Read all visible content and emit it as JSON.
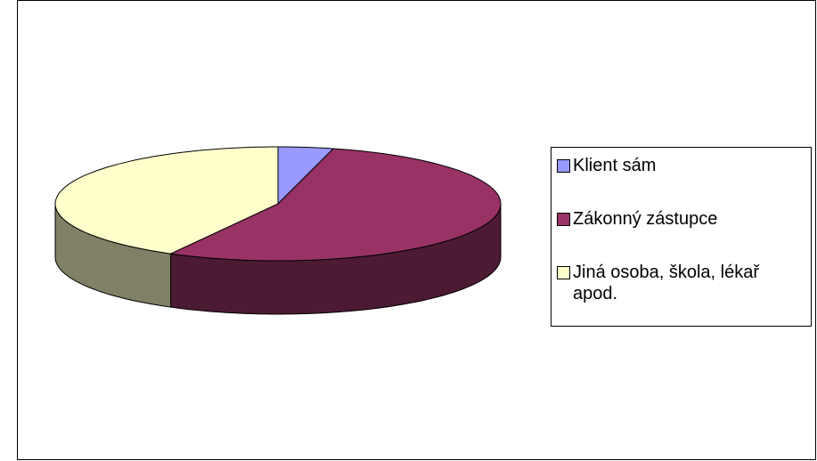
{
  "chart_data": {
    "type": "pie3d",
    "categories": [
      "Klient sám",
      "Zákonný zástupce",
      "Jiná osoba, škola, lékař apod."
    ],
    "values": [
      4,
      54,
      42
    ],
    "colors": [
      "#9999ff",
      "#993366",
      "#ffffcc"
    ]
  }
}
